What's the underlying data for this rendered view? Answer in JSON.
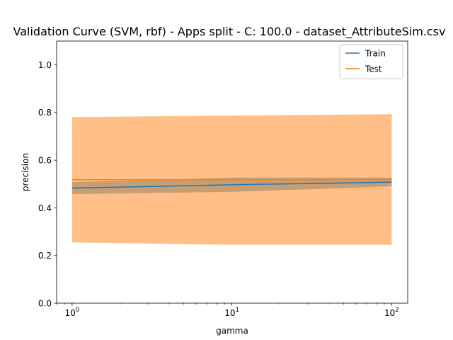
{
  "chart_data": {
    "type": "line",
    "title": "Validation Curve (SVM, rbf) - Apps split - C: 100.0 - dataset_AttributeSim.csv",
    "xlabel": "gamma",
    "ylabel": "precision",
    "xscale": "log",
    "xlim": [
      0.8,
      126
    ],
    "ylim": [
      0.0,
      1.1
    ],
    "x": [
      1,
      10,
      100
    ],
    "x_ticks": [
      {
        "value": 1,
        "base": "10",
        "exp": "0"
      },
      {
        "value": 10,
        "base": "10",
        "exp": "1"
      },
      {
        "value": 100,
        "base": "10",
        "exp": "2"
      }
    ],
    "y_ticks": [
      {
        "value": 0.0,
        "label": "0.0"
      },
      {
        "value": 0.2,
        "label": "0.2"
      },
      {
        "value": 0.4,
        "label": "0.4"
      },
      {
        "value": 0.6,
        "label": "0.6"
      },
      {
        "value": 0.8,
        "label": "0.8"
      },
      {
        "value": 1.0,
        "label": "1.0"
      }
    ],
    "series": [
      {
        "name": "Train",
        "color": "#1f77b4",
        "values": [
          0.483,
          0.497,
          0.508
        ],
        "band_lower": [
          0.458,
          0.467,
          0.49
        ],
        "band_upper": [
          0.508,
          0.527,
          0.527
        ]
      },
      {
        "name": "Test",
        "color": "#ff7f0e",
        "values": [
          0.518,
          0.518,
          0.518
        ],
        "band_lower": [
          0.255,
          0.245,
          0.245
        ],
        "band_upper": [
          0.781,
          0.787,
          0.793
        ]
      }
    ],
    "grid": false,
    "legend": "top-right"
  }
}
